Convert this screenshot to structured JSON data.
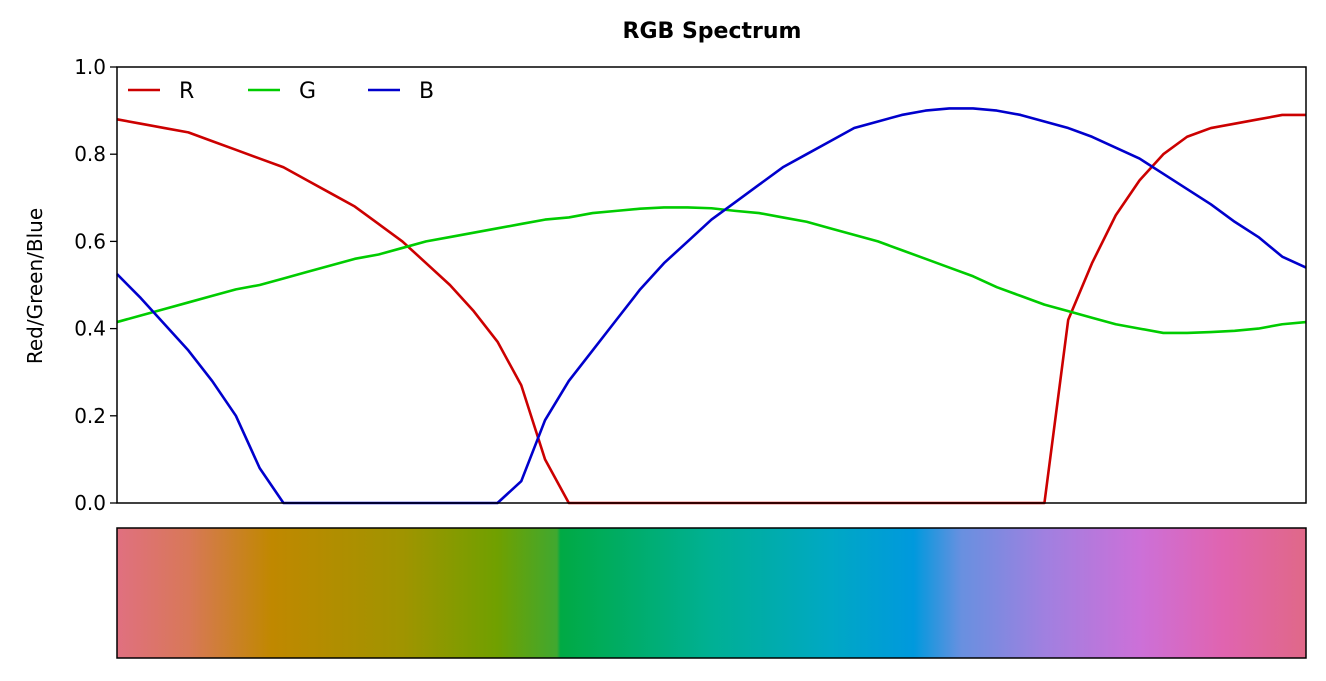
{
  "chart_data": {
    "type": "line",
    "title": "RGB Spectrum",
    "xlabel": "",
    "ylabel": "Red/Green/Blue",
    "xlim": [
      0,
      1
    ],
    "ylim": [
      0,
      1
    ],
    "yticks": [
      0.0,
      0.2,
      0.4,
      0.6,
      0.8,
      1.0
    ],
    "ytick_labels": [
      "0.0",
      "0.2",
      "0.4",
      "0.6",
      "0.8",
      "1.0"
    ],
    "x_axis_visible": false,
    "grid": false,
    "legend": {
      "placement": "top-left",
      "columns": 3,
      "frame": false
    },
    "x": [
      0.0,
      0.02,
      0.04,
      0.06,
      0.08,
      0.1,
      0.12,
      0.14,
      0.16,
      0.18,
      0.2,
      0.22,
      0.24,
      0.26,
      0.28,
      0.3,
      0.32,
      0.34,
      0.36,
      0.38,
      0.4,
      0.42,
      0.44,
      0.46,
      0.48,
      0.5,
      0.52,
      0.54,
      0.56,
      0.58,
      0.6,
      0.62,
      0.64,
      0.66,
      0.68,
      0.7,
      0.72,
      0.74,
      0.76,
      0.78,
      0.8,
      0.82,
      0.84,
      0.86,
      0.88,
      0.9,
      0.92,
      0.94,
      0.96,
      0.98,
      1.0
    ],
    "series": [
      {
        "name": "R",
        "color": "#cc0000",
        "values": [
          0.88,
          0.87,
          0.86,
          0.85,
          0.83,
          0.81,
          0.79,
          0.77,
          0.74,
          0.71,
          0.68,
          0.64,
          0.6,
          0.55,
          0.5,
          0.44,
          0.37,
          0.27,
          0.1,
          0.0,
          0.0,
          0.0,
          0.0,
          0.0,
          0.0,
          0.0,
          0.0,
          0.0,
          0.0,
          0.0,
          0.0,
          0.0,
          0.0,
          0.0,
          0.0,
          0.0,
          0.0,
          0.0,
          0.0,
          0.0,
          0.42,
          0.55,
          0.66,
          0.74,
          0.8,
          0.84,
          0.86,
          0.87,
          0.88,
          0.89,
          0.89
        ]
      },
      {
        "name": "G",
        "color": "#00cc00",
        "values": [
          0.415,
          0.43,
          0.445,
          0.46,
          0.475,
          0.49,
          0.5,
          0.515,
          0.53,
          0.545,
          0.56,
          0.57,
          0.585,
          0.6,
          0.61,
          0.62,
          0.63,
          0.64,
          0.65,
          0.655,
          0.665,
          0.67,
          0.675,
          0.678,
          0.678,
          0.676,
          0.67,
          0.665,
          0.655,
          0.645,
          0.63,
          0.615,
          0.6,
          0.58,
          0.56,
          0.54,
          0.52,
          0.495,
          0.475,
          0.455,
          0.44,
          0.425,
          0.41,
          0.4,
          0.39,
          0.39,
          0.392,
          0.395,
          0.4,
          0.41,
          0.415
        ]
      },
      {
        "name": "B",
        "color": "#0000cc",
        "values": [
          0.525,
          0.47,
          0.41,
          0.35,
          0.28,
          0.2,
          0.08,
          0.0,
          0.0,
          0.0,
          0.0,
          0.0,
          0.0,
          0.0,
          0.0,
          0.0,
          0.0,
          0.05,
          0.19,
          0.28,
          0.35,
          0.42,
          0.49,
          0.55,
          0.6,
          0.65,
          0.69,
          0.73,
          0.77,
          0.8,
          0.83,
          0.86,
          0.875,
          0.89,
          0.9,
          0.905,
          0.905,
          0.9,
          0.89,
          0.875,
          0.86,
          0.84,
          0.815,
          0.79,
          0.755,
          0.72,
          0.685,
          0.645,
          0.61,
          0.565,
          0.54
        ]
      }
    ],
    "colorbar": {
      "stops": [
        {
          "x": 0.0,
          "color": "#e07080"
        },
        {
          "x": 0.06,
          "color": "#d87858"
        },
        {
          "x": 0.13,
          "color": "#c08800"
        },
        {
          "x": 0.24,
          "color": "#a09400"
        },
        {
          "x": 0.32,
          "color": "#70a000"
        },
        {
          "x": 0.37,
          "color": "#40a830"
        },
        {
          "x": 0.373,
          "color": "#00aa44"
        },
        {
          "x": 0.5,
          "color": "#00b094"
        },
        {
          "x": 0.6,
          "color": "#00a8c4"
        },
        {
          "x": 0.67,
          "color": "#0099dd"
        },
        {
          "x": 0.71,
          "color": "#6890e0"
        },
        {
          "x": 0.78,
          "color": "#a080e0"
        },
        {
          "x": 0.86,
          "color": "#cc70d8"
        },
        {
          "x": 0.93,
          "color": "#e064b0"
        },
        {
          "x": 1.0,
          "color": "#e06888"
        }
      ]
    }
  }
}
